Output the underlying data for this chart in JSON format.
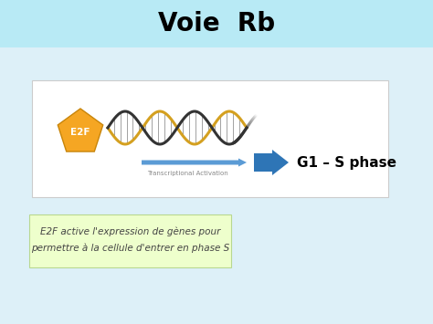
{
  "title": "Voie  Rb",
  "title_fontsize": 20,
  "title_fontweight": "bold",
  "title_bg_color": "#b8eaf5",
  "bg_color": "#ddf0f8",
  "main_box_facecolor": "#ffffff",
  "main_box_edgecolor": "#cccccc",
  "e2f_color": "#f5a623",
  "e2f_edge_color": "#c8850a",
  "e2f_text": "E2F",
  "e2f_text_color": "#ffffff",
  "arrow_thin_color": "#5b9bd5",
  "arrow_big_color": "#2e75b6",
  "label_text": "G1 – S phase",
  "label_fontsize": 11,
  "sub_text_line1": "E2F active l'expression de gènes pour",
  "sub_text_line2": "permettre à la cellule d'entrer en phase S",
  "sub_text_fontsize": 7.5,
  "sub_box_facecolor": "#eeffcc",
  "sub_box_edgecolor": "#b8d890",
  "transcription_label": "Transcriptional Activation",
  "transcription_fontsize": 5,
  "dna_gold_color": "#d4a020",
  "dna_dark_color": "#333333",
  "rung_color": "#555555"
}
